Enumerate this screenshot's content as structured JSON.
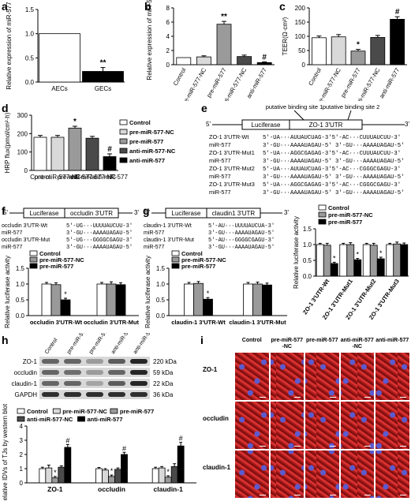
{
  "panel_letters": [
    "a",
    "b",
    "c",
    "d",
    "e",
    "f",
    "g",
    "h",
    "i"
  ],
  "colors": {
    "white": "#ffffff",
    "light": "#d9d9d9",
    "mid": "#9a9a9a",
    "dark": "#4a4a4a",
    "black": "#000000",
    "gel": "#2a2a2a",
    "cell_red": "#c02020",
    "nucleus": "#5b5bd0"
  },
  "chart_data": [
    {
      "panel": "a",
      "type": "bar",
      "ylabel": "Relative expression of miR-577",
      "categories": [
        "AECs",
        "GECs"
      ],
      "values": [
        1.0,
        0.22
      ],
      "errors": [
        0,
        0.08
      ],
      "ylim": [
        0,
        1.5
      ],
      "yticks": [
        "0.0",
        "0.5",
        "1.0",
        "1.5"
      ],
      "annotations": [
        "",
        "**"
      ]
    },
    {
      "panel": "b",
      "type": "bar",
      "ylabel": "Relative expression of miR-577",
      "categories": [
        "Control",
        "pre-miR-577-NC",
        "pre-miR-577",
        "anti-miR-577-NC",
        "anti-miR-577"
      ],
      "values": [
        1.0,
        1.1,
        5.7,
        1.15,
        0.3
      ],
      "errors": [
        0,
        0.15,
        0.4,
        0.2,
        0.1
      ],
      "ylim": [
        0,
        8
      ],
      "yticks": [
        "0",
        "2",
        "4",
        "6",
        "8"
      ],
      "annotations": [
        "",
        "",
        "**",
        "",
        "#"
      ]
    },
    {
      "panel": "c",
      "type": "bar",
      "ylabel": "TEER(Ω·cm²)",
      "categories": [
        "Control",
        "pre-miR-577-NC",
        "pre-miR-577",
        "anti-miR-577-NC",
        "anti-miR-577"
      ],
      "values": [
        95,
        98,
        48,
        96,
        160
      ],
      "errors": [
        6,
        8,
        6,
        7,
        9
      ],
      "ylim": [
        0,
        200
      ],
      "yticks": [
        "0",
        "50",
        "100",
        "150",
        "200"
      ],
      "annotations": [
        "",
        "",
        "*",
        "",
        "#"
      ]
    },
    {
      "panel": "d",
      "type": "bar",
      "ylabel": "HRP flux(pmol/cm²·h)",
      "categories": [
        "Control",
        "pre-miR-577-NC",
        "pre-miR-577",
        "anti-miR-577-NC",
        "anti-miR-577"
      ],
      "values": [
        180,
        180,
        230,
        175,
        75
      ],
      "errors": [
        10,
        10,
        10,
        10,
        15
      ],
      "ylim": [
        0,
        300
      ],
      "yticks": [
        "0",
        "100",
        "200",
        "300"
      ],
      "annotations": [
        "",
        "",
        "*",
        "",
        "#"
      ]
    },
    {
      "panel": "f",
      "type": "bar",
      "ylabel": "Relative luciferase activity",
      "categories": [
        "occludin 3'UTR-Wt",
        "occludin 3'UTR-Mut"
      ],
      "series": [
        {
          "name": "Control",
          "values": [
            1.0,
            1.0
          ]
        },
        {
          "name": "pre-miR-577-NC",
          "values": [
            0.98,
            1.0
          ]
        },
        {
          "name": "pre-miR-577",
          "values": [
            0.5,
            0.98
          ]
        }
      ],
      "errors": [
        [
          0.05,
          0.05
        ],
        [
          0.06,
          0.07
        ],
        [
          0.05,
          0.06
        ]
      ],
      "ylim": [
        0,
        1.5
      ],
      "yticks": [
        "0.0",
        "0.5",
        "1.0",
        "1.5"
      ],
      "annotations": [
        [
          "",
          "",
          ""
        ],
        [
          "",
          "",
          ""
        ],
        [
          "*",
          ""
        ]
      ]
    },
    {
      "panel": "g1",
      "type": "bar",
      "ylabel": "Relative luciferase activity",
      "categories": [
        "claudin-1 3'UTR-Wt",
        "claudin-1 3'UTR-Mut"
      ],
      "series": [
        {
          "name": "Control",
          "values": [
            1.0,
            1.0
          ]
        },
        {
          "name": "pre-miR-577-NC",
          "values": [
            1.02,
            1.0
          ]
        },
        {
          "name": "pre-miR-577",
          "values": [
            0.52,
            0.97
          ]
        }
      ],
      "errors": [
        [
          0.05,
          0.05
        ],
        [
          0.06,
          0.06
        ],
        [
          0.05,
          0.06
        ]
      ],
      "ylim": [
        0,
        1.5
      ],
      "yticks": [
        "0.0",
        "0.5",
        "1.0",
        "1.5"
      ],
      "annotations": [
        [
          "",
          ""
        ],
        [
          "",
          ""
        ],
        [
          "*",
          ""
        ]
      ]
    },
    {
      "panel": "g2",
      "type": "bar",
      "ylabel": "Relative luciferase activity",
      "categories": [
        "ZO-1 3'UTR-Wt",
        "ZO-1 3'UTR-Mut1",
        "ZO-1 3'UTR-Mut2",
        "ZO-1 3'UTR-Mut3"
      ],
      "series": [
        {
          "name": "Control",
          "values": [
            1.0,
            1.0,
            1.0,
            1.0
          ]
        },
        {
          "name": "pre-miR-577-NC",
          "values": [
            0.98,
            1.0,
            0.98,
            1.02
          ]
        },
        {
          "name": "pre-miR-577",
          "values": [
            0.4,
            0.52,
            0.55,
            1.0
          ]
        }
      ],
      "errors": [
        [
          0.04,
          0.04,
          0.04,
          0.04
        ],
        [
          0.06,
          0.06,
          0.06,
          0.06
        ],
        [
          0.04,
          0.04,
          0.05,
          0.05
        ]
      ],
      "ylim": [
        0,
        1.5
      ],
      "yticks": [
        "0.0",
        "0.5",
        "1.0",
        "1.5"
      ],
      "annotations": [
        [
          "",
          "",
          "",
          ""
        ],
        [
          "",
          "",
          "",
          ""
        ],
        [
          "*",
          "*",
          "*",
          ""
        ]
      ]
    },
    {
      "panel": "h",
      "type": "bar",
      "ylabel": "Relative IDVs of TJs by western blot",
      "categories": [
        "ZO-1",
        "occludin",
        "claudin-1"
      ],
      "series": [
        {
          "name": "Control",
          "values": [
            1.0,
            1.0,
            1.0
          ]
        },
        {
          "name": "pre-miR-577-NC",
          "values": [
            1.05,
            0.9,
            1.05
          ]
        },
        {
          "name": "pre-miR-577",
          "values": [
            0.35,
            0.45,
            0.4
          ]
        },
        {
          "name": "anti-miR-577-NC",
          "values": [
            1.1,
            0.95,
            1.15
          ]
        },
        {
          "name": "anti-miR-577",
          "values": [
            2.5,
            2.0,
            2.6
          ]
        }
      ],
      "errors": [
        [
          0.1,
          0.08,
          0.1
        ],
        [
          0.2,
          0.1,
          0.1
        ],
        [
          0.1,
          0.1,
          0.1
        ],
        [
          0.1,
          0.1,
          0.2
        ],
        [
          0.2,
          0.15,
          0.25
        ]
      ],
      "ylim": [
        0,
        4
      ],
      "yticks": [
        "0",
        "1",
        "2",
        "3",
        "4"
      ],
      "annotations": [
        [
          "",
          "",
          ""
        ],
        [
          "",
          "",
          ""
        ],
        [
          "*",
          "*",
          "*"
        ],
        [
          "",
          "",
          ""
        ],
        [
          "#",
          "#",
          "#"
        ]
      ]
    }
  ],
  "legend_5": [
    "Control",
    "pre-miR-577-NC",
    "pre-miR-577",
    "anti-miR-577-NC",
    "anti-miR-577"
  ],
  "legend_3": [
    "Control",
    "pre-miR-577-NC",
    "pre-miR-577"
  ],
  "panel_e": {
    "prime5": "5'",
    "prime3": "3'",
    "luc": "Luciferase",
    "utr": "ZO-1 3'UTR",
    "site1": "putative binding site 1",
    "site2": "putative binding site 2",
    "rows": [
      {
        "name": "ZO-1 3'UTR-Wt",
        "seq": "5'-UA···AUUAUCUAG-3'5'-AC···CUUUAUCUU-3'"
      },
      {
        "name": "miR-577",
        "seq": "3'-GU···AAAAUAGAU-5' 3'-GU···AAAAUAGAU-5'"
      },
      {
        "name": "ZO-1 3'UTR-Mut1",
        "seq": "5'-UA···AGGCGAGAG-3'5'-AC···CUUUAUCUU-3'"
      },
      {
        "name": "miR-577",
        "seq": "3'-GU···AAAAUAGAU-5' 3'-GU···AAAAUAGAU-5'"
      },
      {
        "name": "ZO-1 3'UTR-Mut2",
        "seq": "5'-UA···AUUAUCUAG-3'5'-AC···CGGGCGAGU-3'"
      },
      {
        "name": "miR-577",
        "seq": "3'-GU···AAAAUAGAU-5' 3'-GU···AAAAUAGAU-5'"
      },
      {
        "name": "ZO-1 3'UTR-Mut3",
        "seq": "5'-UA···AGGCGAGAG-3'5'-AC···CGGGCGAGU-3'"
      },
      {
        "name": "miR-577",
        "seq": "3'-GU···AAAAUAGAU-5' 3'-GU···AAAAUAGAU-5'"
      }
    ]
  },
  "panel_f": {
    "prime5": "5'",
    "prime3": "3'",
    "luc": "Luciferase",
    "utr": "occludin 3'UTR",
    "rows": [
      {
        "name": "occludin 3'UTR-Wt",
        "seq": "5'-UG···UUUUAUCUU-3'"
      },
      {
        "name": "miR-577",
        "seq": "3'-GU···AAAAUAGAU-5'"
      },
      {
        "name": "occludin 3'UTR-Mut",
        "seq": "5'-UG···GGGGCGAGU-3'"
      },
      {
        "name": "miR-577",
        "seq": "3'-GU···AAAAUAGAU-5'"
      }
    ]
  },
  "panel_g": {
    "prime5": "5'",
    "prime3": "3'",
    "luc": "Luciferase",
    "utr": "claudin1 3'UTR",
    "rows": [
      {
        "name": "claudin-1 3'UTR-Wt",
        "seq": "5'-AU···UUUUAUCUA-3'"
      },
      {
        "name": "miR-577",
        "seq": "3'-GU···AAAAUAGAU-5'"
      },
      {
        "name": "claudin-1 3'UTR-Mut",
        "seq": "5'-AU···GGGGCGAGU-3'"
      },
      {
        "name": "miR-577",
        "seq": "3'-GU···AAAAUAGAU-5'"
      }
    ]
  },
  "panel_h_blot": {
    "lanes": [
      "Control",
      "pre-miR-577-NC",
      "pre-miR-577",
      "anti-miR-577-NC",
      "anti-miR-577"
    ],
    "bands": [
      {
        "name": "ZO-1",
        "kda": "220 kDa",
        "levels": [
          0.55,
          0.55,
          0.25,
          0.6,
          0.9
        ]
      },
      {
        "name": "occludin",
        "kda": "59 kDa",
        "levels": [
          0.55,
          0.5,
          0.25,
          0.55,
          0.9
        ]
      },
      {
        "name": "claudin-1",
        "kda": "22 kDa",
        "levels": [
          0.55,
          0.55,
          0.2,
          0.6,
          0.9
        ]
      },
      {
        "name": "GAPDH",
        "kda": "36 kDa",
        "levels": [
          0.85,
          0.85,
          0.85,
          0.85,
          0.85
        ]
      }
    ]
  },
  "panel_i": {
    "cols": [
      "Control",
      "pre-miR-577 -NC",
      "pre-miR-577",
      "anti-miR-577 -NC",
      "anti-miR-577"
    ],
    "rows": [
      "ZO-1",
      "occludin",
      "claudin-1"
    ]
  }
}
